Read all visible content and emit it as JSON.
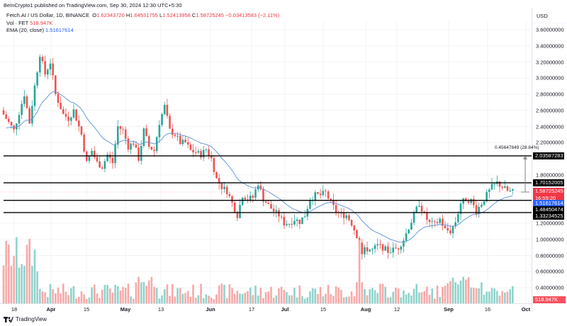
{
  "header": {
    "published": "BeInCrypto1 published on TradingView.com, Sep 30, 2024 12:30 UTC+5:30",
    "symbol": "Fetch.AI / US Dollar, 1D, BINANCE",
    "open_label": "O",
    "open": "1.62343720",
    "high_label": "H",
    "high": "1.64531755",
    "low_label": "L",
    "low": "1.52413958",
    "close_label": "C",
    "close": "1.58725245",
    "change": "−0.03413583 (−2.11%)",
    "vol_label": "Vol · FET",
    "vol": "518.947K",
    "ema_label": "EMA (20, close)",
    "ema": "1.51617614"
  },
  "axis": {
    "currency": "USD",
    "y_ticks": [
      "3.60000000",
      "3.40000000",
      "3.20000000",
      "3.00000000",
      "2.80000000",
      "2.60000000",
      "2.40000000",
      "2.20000000",
      "1.80000000",
      "1.20000000",
      "1.00000000",
      "0.80000000",
      "0.60000000",
      "0.40000000"
    ],
    "x_ticks": [
      {
        "label": "18",
        "bold": false
      },
      {
        "label": "Apr",
        "bold": true
      },
      {
        "label": "15",
        "bold": false
      },
      {
        "label": "May",
        "bold": true
      },
      {
        "label": "13",
        "bold": false
      },
      {
        "label": "Jun",
        "bold": true
      },
      {
        "label": "17",
        "bold": false
      },
      {
        "label": "Jul",
        "bold": true
      },
      {
        "label": "15",
        "bold": false
      },
      {
        "label": "Aug",
        "bold": true
      },
      {
        "label": "12",
        "bold": false
      },
      {
        "label": "Sep",
        "bold": true
      },
      {
        "label": "16",
        "bold": false
      },
      {
        "label": "Oct",
        "bold": true
      }
    ]
  },
  "price_labels": {
    "level_1": "2.03587283",
    "level_2": "1.70152005",
    "current_price": "1.58725245",
    "countdown": "16:59:20",
    "ema": "1.51617614",
    "level_3": "1.48450474",
    "level_4": "1.33234525",
    "volume": "518.947K"
  },
  "measure_label": "0.45647849 (28.84%)",
  "footer": {
    "brand": "TradingView"
  },
  "colors": {
    "up": "#26a69a",
    "down": "#ef5350",
    "ema": "#5b8fd9",
    "vol_up": "#8fd3cb",
    "vol_down": "#f7a9a8",
    "current": "#f23645",
    "ema_label": "#2962ff",
    "level": "#000000"
  },
  "chart_data": {
    "type": "candlestick",
    "title": "Fetch.AI / US Dollar, 1D, BINANCE",
    "ylabel": "USD",
    "ylim": [
      0.3,
      3.75
    ],
    "x_labels": [
      "18",
      "Apr",
      "15",
      "May",
      "13",
      "Jun",
      "17",
      "Jul",
      "15",
      "Aug",
      "12",
      "Sep",
      "16",
      "Oct"
    ],
    "horizontal_levels": [
      2.03587283,
      1.70152005,
      1.48450474,
      1.33234525
    ],
    "last": {
      "open": 1.6234372,
      "high": 1.64531755,
      "low": 1.52413958,
      "close": 1.58725245,
      "change": -0.03413583,
      "change_pct": -2.11
    },
    "ema20_last": 1.51617614,
    "volume_last": "518.947K",
    "measure": {
      "from": 1.58,
      "to": 2.03587283,
      "delta": 0.45647849,
      "pct": 28.84
    },
    "series_approx_closes": [
      {
        "date": "Mar 18",
        "close": 2.6
      },
      {
        "date": "Apr 1",
        "close": 3.2
      },
      {
        "date": "Apr 15",
        "close": 2.0
      },
      {
        "date": "May 1",
        "close": 2.05
      },
      {
        "date": "May 13",
        "close": 2.3
      },
      {
        "date": "May 24",
        "close": 2.3
      },
      {
        "date": "Jun 1",
        "close": 2.1
      },
      {
        "date": "Jun 17",
        "close": 1.35
      },
      {
        "date": "Jun 24",
        "close": 1.65
      },
      {
        "date": "Jul 1",
        "close": 1.5
      },
      {
        "date": "Jul 15",
        "close": 1.45
      },
      {
        "date": "Jul 22",
        "close": 1.4
      },
      {
        "date": "Aug 5",
        "close": 0.85
      },
      {
        "date": "Aug 12",
        "close": 0.87
      },
      {
        "date": "Aug 24",
        "close": 1.45
      },
      {
        "date": "Sep 1",
        "close": 1.25
      },
      {
        "date": "Sep 9",
        "close": 1.3
      },
      {
        "date": "Sep 16",
        "close": 1.5
      },
      {
        "date": "Sep 24",
        "close": 1.65
      },
      {
        "date": "Sep 30",
        "close": 1.587
      }
    ]
  }
}
